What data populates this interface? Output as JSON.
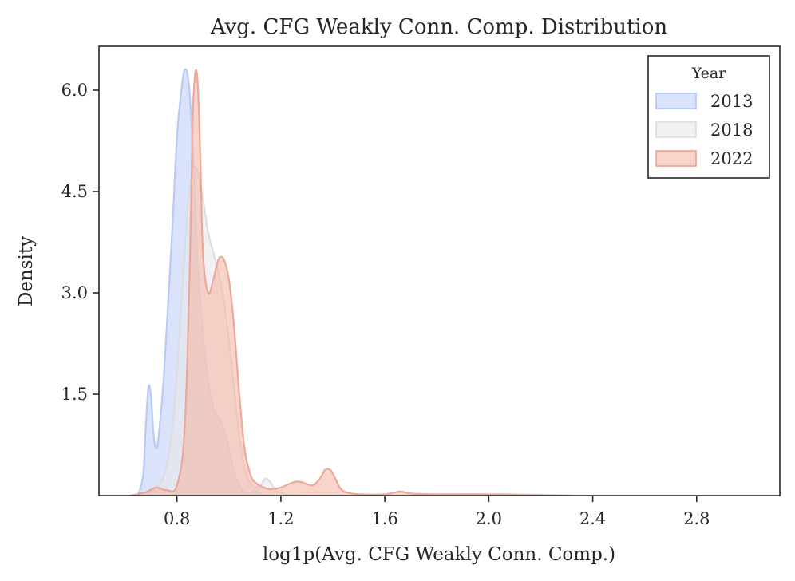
{
  "chart_data": {
    "type": "area",
    "title": "Avg. CFG Weakly Conn. Comp. Distribution",
    "xlabel": "log1p(Avg. CFG Weakly Conn. Comp.)",
    "ylabel": "Density",
    "xlim": [
      0.5,
      3.12
    ],
    "ylim": [
      0,
      6.65
    ],
    "xticks": [
      0.8,
      1.2,
      1.6,
      2.0,
      2.4,
      2.8
    ],
    "xtick_labels": [
      "0.8",
      "1.2",
      "1.6",
      "2.0",
      "2.4",
      "2.8"
    ],
    "yticks": [
      1.5,
      3.0,
      4.5,
      6.0
    ],
    "ytick_labels": [
      "1.5",
      "3.0",
      "4.5",
      "6.0"
    ],
    "grid": false,
    "legend": {
      "title": "Year",
      "placement": "top-right"
    },
    "series": [
      {
        "name": "2013",
        "fill": "#c4d2f9",
        "stroke": "#b3c6f5",
        "x": [
          0.65,
          0.67,
          0.68,
          0.69,
          0.7,
          0.71,
          0.72,
          0.73,
          0.75,
          0.78,
          0.8,
          0.82,
          0.83,
          0.84,
          0.85,
          0.86,
          0.87,
          0.88,
          0.9,
          0.92,
          0.94,
          0.96,
          0.98,
          1.0,
          1.02,
          1.04,
          1.06,
          1.08,
          1.1,
          1.12,
          1.15
        ],
        "y": [
          0.0,
          0.3,
          1.0,
          1.6,
          1.5,
          0.9,
          0.7,
          0.9,
          1.8,
          3.8,
          5.3,
          6.1,
          6.3,
          6.25,
          5.9,
          5.2,
          4.3,
          3.4,
          2.4,
          1.7,
          1.3,
          1.15,
          1.0,
          0.7,
          0.35,
          0.15,
          0.05,
          0.03,
          0.08,
          0.03,
          0.0
        ]
      },
      {
        "name": "2018",
        "fill": "#e8e8e8",
        "stroke": "#dcdcdc",
        "x": [
          0.65,
          0.7,
          0.75,
          0.78,
          0.8,
          0.82,
          0.84,
          0.86,
          0.88,
          0.9,
          0.92,
          0.94,
          0.96,
          0.98,
          1.0,
          1.02,
          1.04,
          1.06,
          1.08,
          1.1,
          1.12,
          1.14,
          1.16,
          1.18,
          1.22,
          1.3
        ],
        "y": [
          0.0,
          0.05,
          0.3,
          0.9,
          1.8,
          3.0,
          4.2,
          4.8,
          4.8,
          4.4,
          3.9,
          3.6,
          3.3,
          2.9,
          2.3,
          1.6,
          0.9,
          0.4,
          0.2,
          0.12,
          0.15,
          0.25,
          0.2,
          0.08,
          0.02,
          0.0
        ]
      },
      {
        "name": "2022",
        "fill": "#f3b9aa",
        "stroke": "#e9a393",
        "x": [
          0.62,
          0.68,
          0.72,
          0.76,
          0.8,
          0.83,
          0.85,
          0.86,
          0.87,
          0.88,
          0.89,
          0.9,
          0.92,
          0.94,
          0.96,
          0.98,
          1.0,
          1.02,
          1.04,
          1.06,
          1.08,
          1.1,
          1.15,
          1.2,
          1.25,
          1.28,
          1.32,
          1.35,
          1.37,
          1.39,
          1.41,
          1.43,
          1.46,
          1.5,
          1.6,
          1.66,
          1.7,
          1.8,
          2.0,
          2.2,
          2.32
        ],
        "y": [
          0.0,
          0.05,
          0.12,
          0.08,
          0.15,
          1.0,
          3.5,
          5.5,
          6.25,
          6.1,
          5.0,
          3.6,
          3.0,
          3.2,
          3.5,
          3.5,
          3.2,
          2.5,
          1.5,
          0.7,
          0.35,
          0.2,
          0.1,
          0.12,
          0.2,
          0.2,
          0.15,
          0.25,
          0.38,
          0.38,
          0.25,
          0.1,
          0.04,
          0.02,
          0.02,
          0.06,
          0.03,
          0.02,
          0.02,
          0.01,
          0.0
        ]
      }
    ]
  }
}
